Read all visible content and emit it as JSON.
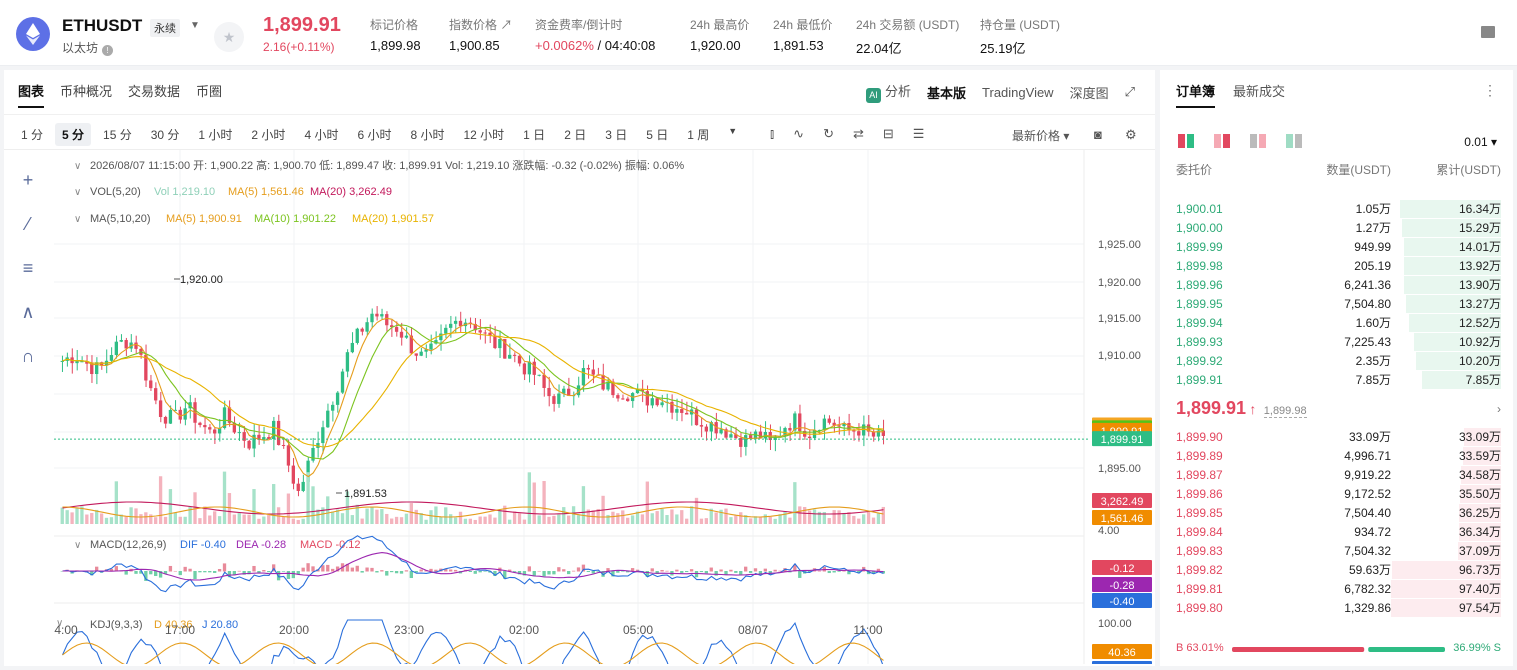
{
  "header": {
    "symbol": "ETHUSDT",
    "perp_badge": "永续",
    "subname": "以太坊",
    "last_price": "1,899.91",
    "change": "2.16(+0.11%)",
    "stats": [
      {
        "label": "标记价格",
        "value": "1,899.98"
      },
      {
        "label": "指数价格 ↗",
        "value": "1,900.85"
      },
      {
        "label": "资金费率/倒计时",
        "value": "+0.0062%",
        "value2": " / 04:40:08"
      },
      {
        "label": "24h 最高价",
        "value": "1,920.00"
      },
      {
        "label": "24h 最低价",
        "value": "1,891.53"
      },
      {
        "label": "24h 交易额 (USDT)",
        "value": "22.04亿"
      },
      {
        "label": "持仓量 (USDT)",
        "value": "25.19亿"
      }
    ]
  },
  "chart_panel": {
    "tabs": [
      "图表",
      "币种概况",
      "交易数据",
      "币圈"
    ],
    "right_tools": [
      "分析",
      "基本版",
      "TradingView",
      "深度图"
    ],
    "intervals": [
      "1 分",
      "5 分",
      "15 分",
      "30 分",
      "1 小时",
      "2 小时",
      "4 小时",
      "6 小时",
      "8 小时",
      "12 小时",
      "1 日",
      "2 日",
      "3 日",
      "5 日",
      "1 周"
    ],
    "active_interval": "5 分",
    "price_mode": "最新价格"
  },
  "chart_data": {
    "type": "candlestick",
    "info_line": "2026/08/07 11:15:00  开: 1,900.22  高: 1,900.70  低: 1,899.47  收: 1,899.91  Vol: 1,219.10  涨跌幅: -0.32 (-0.02%)  振幅: 0.06%",
    "vol_legend": {
      "label": "VOL(5,20)",
      "vol": "Vol 1,219.10",
      "ma5": "MA(5) 1,561.46",
      "ma20": "MA(20) 3,262.49"
    },
    "ma_legend": {
      "label": "MA(5,10,20)",
      "ma5": "MA(5) 1,900.91",
      "ma10": "MA(10) 1,901.22",
      "ma20": "MA(20) 1,901.57"
    },
    "macd_legend": {
      "label": "MACD(12,26,9)",
      "dif": "DIF -0.40",
      "dea": "DEA -0.28",
      "macd": "MACD -0.12"
    },
    "kdj_legend": {
      "label": "KDJ(9,3,3)",
      "d": "D 40.36",
      "j": "J 20.80"
    },
    "price_ticks": [
      "1,925.00",
      "1,920.00",
      "1,915.00",
      "1,910.00",
      "1,895.00"
    ],
    "price_range": [
      1890.0,
      1926.0
    ],
    "x_ticks": [
      "4:00",
      "17:00",
      "20:00",
      "23:00",
      "02:00",
      "05:00",
      "08/07",
      "11:00"
    ],
    "high_label": "1,920.00",
    "low_label": "1,891.53",
    "price_badges": [
      "1,901.57",
      "1,901.22",
      "1,900.91",
      "1,899.91"
    ],
    "vol_badges": [
      "3,262.49",
      "1,561.46"
    ],
    "vol_tick": "4.00",
    "macd_badges": [
      "-0.12",
      "-0.28",
      "-0.40"
    ],
    "kdj_ticks": [
      "100.00"
    ],
    "kdj_badges": [
      "40.36",
      "20.80"
    ],
    "close_path": [
      1909.5,
      1910.2,
      1909.1,
      1908.3,
      1910.8,
      1912.0,
      1911.5,
      1906.4,
      1903.0,
      1902.3,
      1904.0,
      1901.9,
      1900.5,
      1902.8,
      1901.0,
      1899.5,
      1900.3,
      1901.2,
      1897.5,
      1893.2,
      1897.8,
      1902.2,
      1906.0,
      1910.5,
      1913.2,
      1915.5,
      1914.0,
      1913.5,
      1911.3,
      1909.8,
      1911.0,
      1913.4,
      1914.8,
      1914.2,
      1912.5,
      1911.3,
      1910.5,
      1908.9,
      1907.8,
      1905.3,
      1904.8,
      1906.1,
      1908.4,
      1907.0,
      1906.1,
      1905.8,
      1905.4,
      1904.8,
      1905.1,
      1904.1,
      1903.6,
      1902.4,
      1901.8,
      1901.3,
      1900.3,
      1899.8,
      1900.5,
      1899.2,
      1901.5,
      1902.3,
      1900.6,
      1902.3,
      1901.9,
      1900.8,
      1901.2,
      1900.3,
      1899.9
    ],
    "bar_colors": {
      "up": "#2ebd85",
      "down": "#e2475f"
    }
  },
  "orderbook": {
    "tabs": [
      "订单簿",
      "最新成交"
    ],
    "precision": "0.01",
    "headers": [
      "委托价",
      "数量(USDT)",
      "累计(USDT)"
    ],
    "bids": [
      {
        "price": "1,900.01",
        "qty": "1.05万",
        "cum": "16.34万",
        "depth": 0.92
      },
      {
        "price": "1,900.00",
        "qty": "1.27万",
        "cum": "15.29万",
        "depth": 0.9
      },
      {
        "price": "1,899.99",
        "qty": "949.99",
        "cum": "14.01万",
        "depth": 0.88
      },
      {
        "price": "1,899.98",
        "qty": "205.19",
        "cum": "13.92万",
        "depth": 0.88
      },
      {
        "price": "1,899.96",
        "qty": "6,241.36",
        "cum": "13.90万",
        "depth": 0.88
      },
      {
        "price": "1,899.95",
        "qty": "7,504.80",
        "cum": "13.27万",
        "depth": 0.86
      },
      {
        "price": "1,899.94",
        "qty": "1.60万",
        "cum": "12.52万",
        "depth": 0.84
      },
      {
        "price": "1,899.93",
        "qty": "7,225.43",
        "cum": "10.92万",
        "depth": 0.79
      },
      {
        "price": "1,899.92",
        "qty": "2.35万",
        "cum": "10.20万",
        "depth": 0.77
      },
      {
        "price": "1,899.91",
        "qty": "7.85万",
        "cum": "7.85万",
        "depth": 0.72
      }
    ],
    "mid_price": "1,899.91",
    "mark_price": "1,899.98",
    "asks": [
      {
        "price": "1,899.90",
        "qty": "33.09万",
        "cum": "33.09万",
        "depth": 0.34
      },
      {
        "price": "1,899.89",
        "qty": "4,996.71",
        "cum": "33.59万",
        "depth": 0.35
      },
      {
        "price": "1,899.87",
        "qty": "9,919.22",
        "cum": "34.58万",
        "depth": 0.36
      },
      {
        "price": "1,899.86",
        "qty": "9,172.52",
        "cum": "35.50万",
        "depth": 0.37
      },
      {
        "price": "1,899.85",
        "qty": "7,504.40",
        "cum": "36.25万",
        "depth": 0.38
      },
      {
        "price": "1,899.84",
        "qty": "934.72",
        "cum": "36.34万",
        "depth": 0.38
      },
      {
        "price": "1,899.83",
        "qty": "7,504.32",
        "cum": "37.09万",
        "depth": 0.39
      },
      {
        "price": "1,899.82",
        "qty": "59.63万",
        "cum": "96.73万",
        "depth": 0.99
      },
      {
        "price": "1,899.81",
        "qty": "6,782.32",
        "cum": "97.40万",
        "depth": 1.0
      },
      {
        "price": "1,899.80",
        "qty": "1,329.86",
        "cum": "97.54万",
        "depth": 1.0
      }
    ],
    "ratio_buy": "B 63.01%",
    "ratio_sell": "36.99% S",
    "ratio_buy_value": 0.6301
  },
  "colors": {
    "up": "#2ebd85",
    "down": "#e2475f",
    "accent": "#111111"
  }
}
